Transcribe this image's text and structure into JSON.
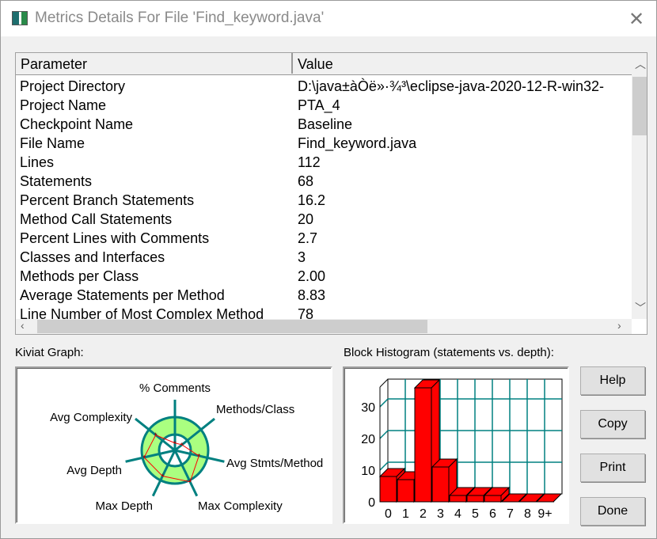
{
  "window": {
    "title": "Metrics Details For File 'Find_keyword.java'",
    "close_icon": "close-x-icon"
  },
  "table": {
    "columns": [
      "Parameter",
      "Value"
    ],
    "rows": [
      [
        "Project Directory",
        "D:\\java±àÒë»·¾³\\eclipse-java-2020-12-R-win32-"
      ],
      [
        "Project Name",
        "PTA_4"
      ],
      [
        "Checkpoint Name",
        "Baseline"
      ],
      [
        "File Name",
        "Find_keyword.java"
      ],
      [
        "Lines",
        "112"
      ],
      [
        "Statements",
        "68"
      ],
      [
        "Percent Branch Statements",
        "16.2"
      ],
      [
        "Method Call Statements",
        "20"
      ],
      [
        "Percent Lines with Comments",
        "2.7"
      ],
      [
        "Classes and Interfaces",
        "3"
      ],
      [
        "Methods per Class",
        "2.00"
      ],
      [
        "Average Statements per Method",
        "8.83"
      ],
      [
        "Line Number of Most Complex Method",
        "78"
      ]
    ]
  },
  "kiviat": {
    "label": "Kiviat Graph:",
    "axes": [
      "% Comments",
      "Methods/Class",
      "Avg Stmts/Method",
      "Max Complexity",
      "Max Depth",
      "Avg Depth",
      "Avg Complexity"
    ],
    "levels": [
      0.22,
      0.27,
      0.74,
      1.05,
      0.86,
      0.95,
      0.74
    ],
    "colors": {
      "ring": "#008080",
      "band": "#aaff80",
      "polygon": "#ff0000"
    }
  },
  "chart_data": {
    "type": "bar",
    "title": "Block Histogram (statements vs. depth):",
    "categories": [
      "0",
      "1",
      "2",
      "3",
      "4",
      "5",
      "6",
      "7",
      "8",
      "9+"
    ],
    "values": [
      8,
      7,
      36,
      11,
      2,
      2,
      2,
      0,
      0,
      0
    ],
    "yticks": [
      0,
      10,
      20,
      30
    ],
    "ylim": [
      0,
      36
    ],
    "grid": true,
    "style": "3d",
    "colors": {
      "bar": "#ff0000",
      "grid": "#008080"
    }
  },
  "buttons": {
    "help": "Help",
    "copy": "Copy",
    "print": "Print",
    "done": "Done"
  }
}
